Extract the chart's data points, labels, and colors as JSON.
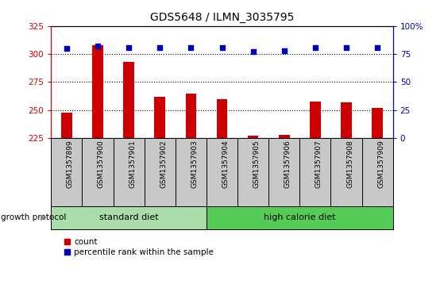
{
  "title": "GDS5648 / ILMN_3035795",
  "samples": [
    "GSM1357899",
    "GSM1357900",
    "GSM1357901",
    "GSM1357902",
    "GSM1357903",
    "GSM1357904",
    "GSM1357905",
    "GSM1357906",
    "GSM1357907",
    "GSM1357908",
    "GSM1357909"
  ],
  "counts": [
    248,
    308,
    293,
    262,
    265,
    260,
    227,
    228,
    258,
    257,
    252
  ],
  "percentile_ranks": [
    80,
    82,
    81,
    81,
    81,
    81,
    77,
    78,
    81,
    81,
    81
  ],
  "ylim_left": [
    225,
    325
  ],
  "ylim_right": [
    0,
    100
  ],
  "yticks_left": [
    225,
    250,
    275,
    300,
    325
  ],
  "yticks_right": [
    0,
    25,
    50,
    75,
    100
  ],
  "ytick_labels_right": [
    "0",
    "25",
    "50",
    "75",
    "100%"
  ],
  "standard_diet_indices": [
    0,
    1,
    2,
    3,
    4
  ],
  "high_calorie_indices": [
    5,
    6,
    7,
    8,
    9,
    10
  ],
  "growth_protocol_label": "growth protocol",
  "bar_color": "#CC0000",
  "dot_color": "#0000BB",
  "left_axis_color": "#CC0000",
  "right_axis_color": "#0000BB",
  "sample_bg_color": "#C8C8C8",
  "standard_diet_color": "#AADDAA",
  "high_calorie_color": "#55CC55",
  "grid_color": "#000000",
  "bar_width": 0.35,
  "dot_size": 20
}
